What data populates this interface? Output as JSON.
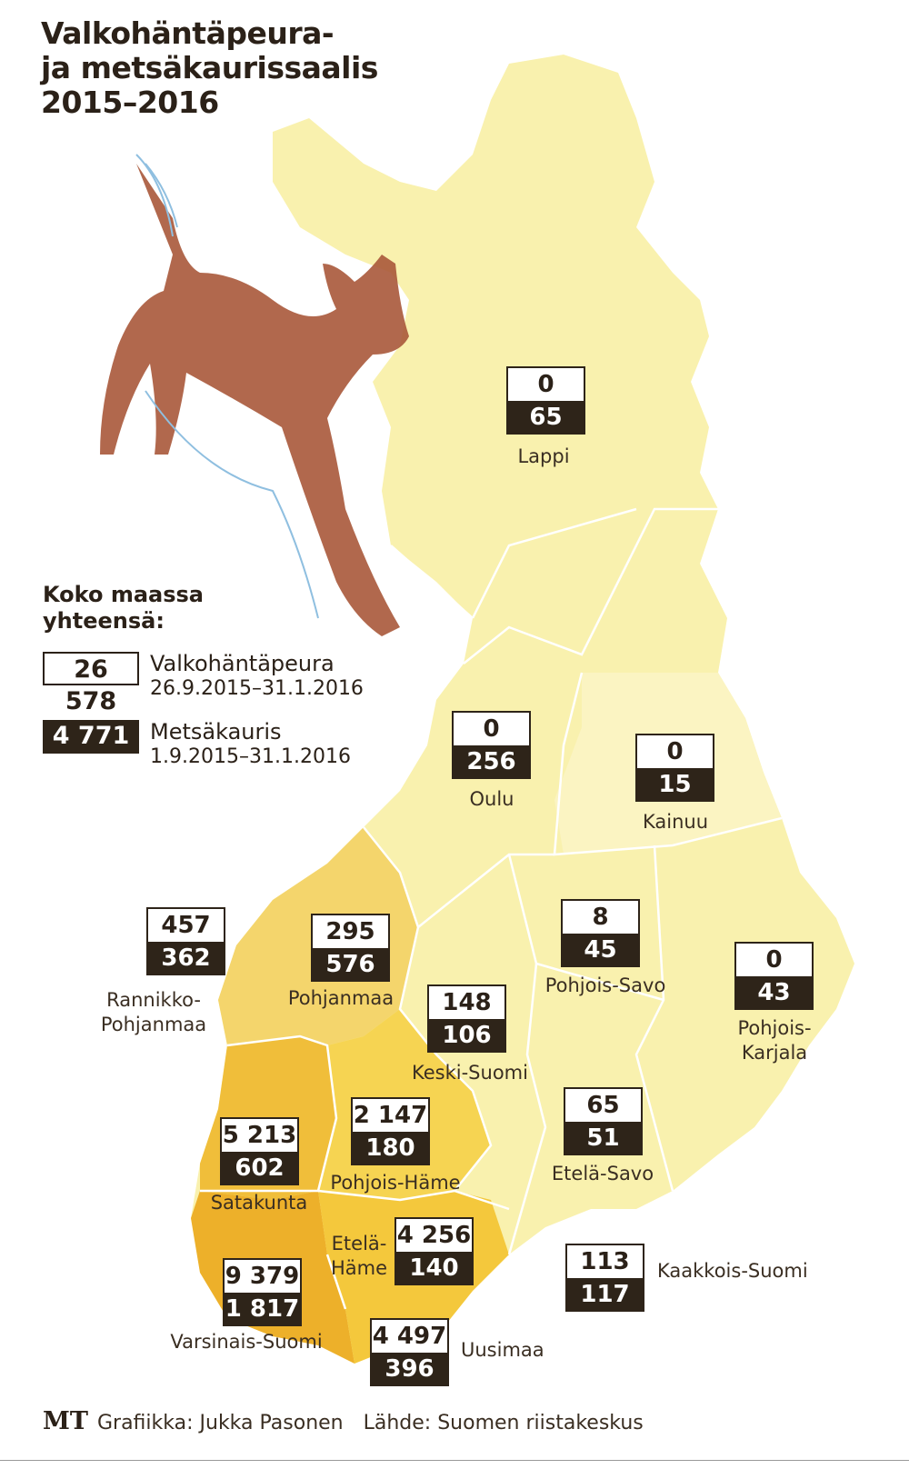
{
  "title": [
    "Valkohäntäpeura-",
    "ja metsäkaurissaalis",
    "2015–2016"
  ],
  "legend": {
    "heading": [
      "Koko maassa",
      "yhteensä:"
    ],
    "valkohantapeura": {
      "total": "26 578",
      "label": "Valkohäntäpeura",
      "period": "26.9.2015–31.1.2016"
    },
    "metsakauris": {
      "total": "4 771",
      "label": "Metsäkauris",
      "period": "1.9.2015–31.1.2016"
    }
  },
  "regions": [
    {
      "name": "Lappi",
      "valkohantapeura": "0",
      "metsakauris": "65"
    },
    {
      "name": "Oulu",
      "valkohantapeura": "0",
      "metsakauris": "256"
    },
    {
      "name": "Kainuu",
      "valkohantapeura": "0",
      "metsakauris": "15"
    },
    {
      "name": "Rannikko-\nPohjanmaa",
      "valkohantapeura": "457",
      "metsakauris": "362"
    },
    {
      "name": "Pohjanmaa",
      "valkohantapeura": "295",
      "metsakauris": "576"
    },
    {
      "name": "Pohjois-Savo",
      "valkohantapeura": "8",
      "metsakauris": "45"
    },
    {
      "name": "Pohjois-Karjala",
      "valkohantapeura": "0",
      "metsakauris": "43"
    },
    {
      "name": "Keski-Suomi",
      "valkohantapeura": "148",
      "metsakauris": "106"
    },
    {
      "name": "Satakunta",
      "valkohantapeura": "5 213",
      "metsakauris": "602"
    },
    {
      "name": "Pohjois-Häme",
      "valkohantapeura": "2 147",
      "metsakauris": "180"
    },
    {
      "name": "Etelä-Savo",
      "valkohantapeura": "65",
      "metsakauris": "51"
    },
    {
      "name": "Etelä-\nHäme",
      "valkohantapeura": "4 256",
      "metsakauris": "140"
    },
    {
      "name": "Kaakkois-Suomi",
      "valkohantapeura": "113",
      "metsakauris": "117"
    },
    {
      "name": "Varsinais-Suomi",
      "valkohantapeura": "9 379",
      "metsakauris": "1 817"
    },
    {
      "name": "Uusimaa",
      "valkohantapeura": "4 497",
      "metsakauris": "396"
    }
  ],
  "footer": {
    "logo": "MT",
    "credit": "Grafiikka: Jukka Pasonen",
    "source": "Lähde: Suomen riistakeskus"
  },
  "colors": {
    "map_light": "#f9f0a8",
    "map_mid": "#f6df74",
    "map_dark": "#f2c33e",
    "map_darkest": "#edb02a",
    "box_dark": "#2e2419",
    "deer": "#a9583a"
  }
}
